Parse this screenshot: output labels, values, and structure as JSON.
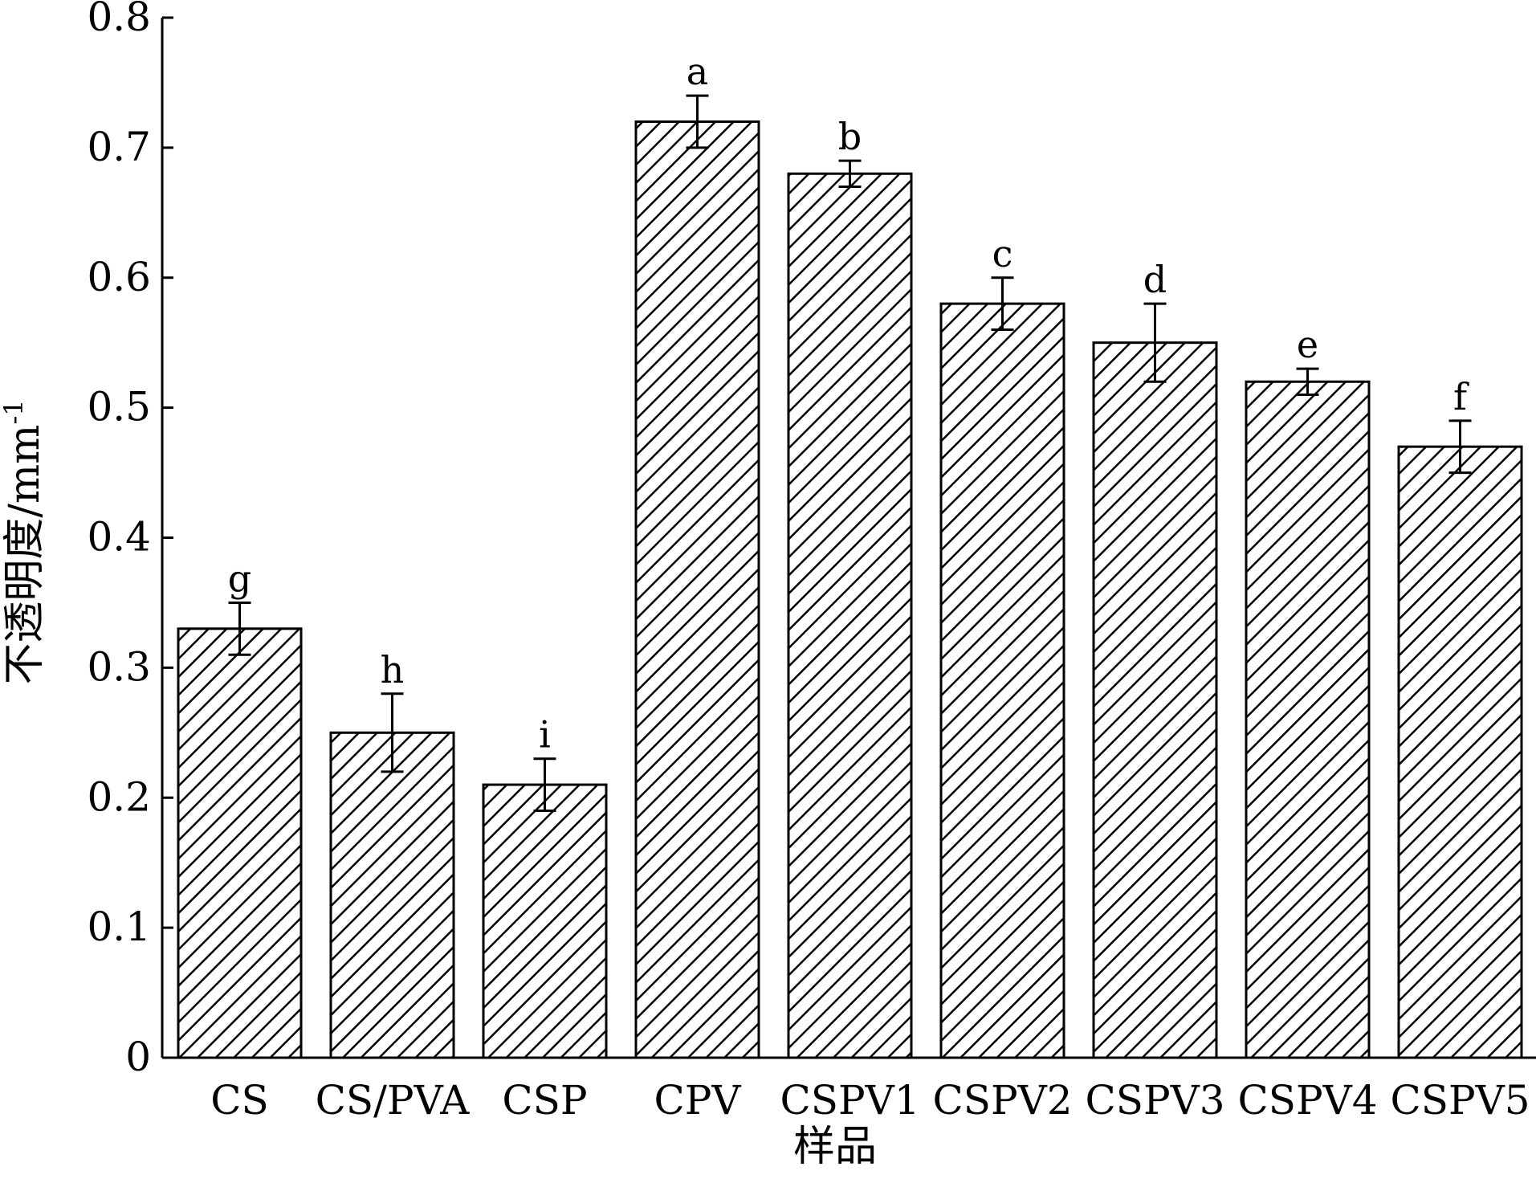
{
  "chart_data": {
    "type": "bar",
    "xlabel": "样品",
    "ylabel": "不透明度/mm",
    "ylabel_superscript": "-1",
    "ylim": [
      0,
      0.8
    ],
    "yticks": [
      0,
      0.1,
      0.2,
      0.3,
      0.4,
      0.5,
      0.6,
      0.7,
      0.8
    ],
    "ytick_labels": [
      "0",
      "0.1",
      "0.2",
      "0.3",
      "0.4",
      "0.5",
      "0.6",
      "0.7",
      "0.8"
    ],
    "grid": false,
    "bar_fill": "diagonal-hatch",
    "colors": {
      "bar_stroke": "#000000",
      "hatch": "#000000",
      "background": "#ffffff"
    },
    "categories": [
      "CS",
      "CS/PVA",
      "CSP",
      "CPV",
      "CSPV1",
      "CSPV2",
      "CSPV3",
      "CSPV4",
      "CSPV5"
    ],
    "values": [
      0.33,
      0.25,
      0.21,
      0.72,
      0.68,
      0.58,
      0.55,
      0.52,
      0.47
    ],
    "errors": [
      0.02,
      0.03,
      0.02,
      0.02,
      0.01,
      0.02,
      0.03,
      0.01,
      0.02
    ],
    "significance_letters": [
      "g",
      "h",
      "i",
      "a",
      "b",
      "c",
      "d",
      "e",
      "f"
    ]
  }
}
